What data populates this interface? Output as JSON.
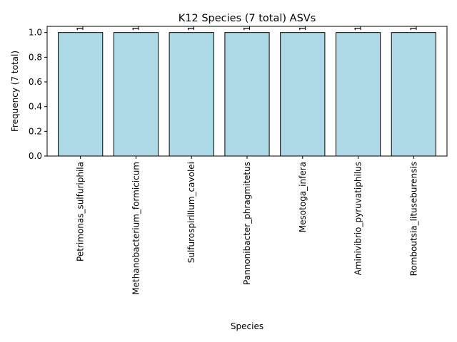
{
  "chart_data": {
    "type": "bar",
    "title": "K12 Species (7 total) ASVs",
    "xlabel": "Species",
    "ylabel": "Frequency (7 total)",
    "categories": [
      "Petrimonas_sulfuriphila",
      "Methanobacterium_formicicum",
      "Sulfurospirillum_cavolei",
      "Pannonibacter_phragmitetus",
      "Mesotoga_infera",
      "Aminivibrio_pyruvatiphilus",
      "Romboutsia_lituseburensis"
    ],
    "values": [
      1,
      1,
      1,
      1,
      1,
      1,
      1
    ],
    "data_labels": [
      "1",
      "1",
      "1",
      "1",
      "1",
      "1",
      "1"
    ],
    "ylim": [
      0,
      1.05
    ],
    "yticks": [
      "0.0",
      "0.2",
      "0.4",
      "0.6",
      "0.8",
      "1.0"
    ],
    "grid": false,
    "bar_color": "#add8e6",
    "bar_edge_color": "#000000"
  }
}
